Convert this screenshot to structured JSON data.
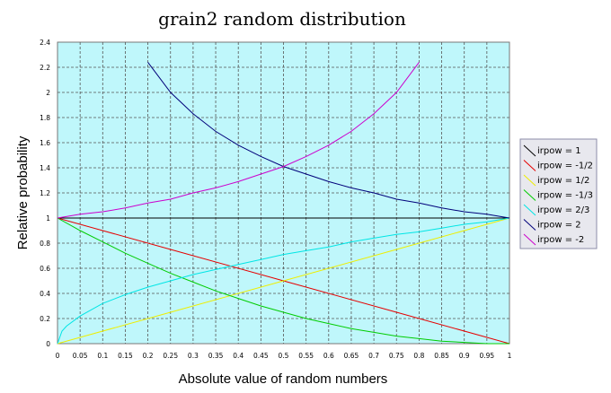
{
  "chart_data": {
    "type": "line",
    "title": "grain2 random distribution",
    "xlabel": "Absolute value of random numbers",
    "ylabel": "Relative probability",
    "xlim": [
      0,
      1
    ],
    "ylim": [
      0,
      2.4
    ],
    "grid": true,
    "legend_position": "right",
    "plot_background": "#bff7fb",
    "x_ticks": [
      "0",
      "0.05",
      "0.1",
      "0.15",
      "0.2",
      "0.25",
      "0.3",
      "0.35",
      "0.4",
      "0.45",
      "0.5",
      "0.55",
      "0.6",
      "0.65",
      "0.7",
      "0.75",
      "0.8",
      "0.85",
      "0.9",
      "0.95",
      "1"
    ],
    "y_ticks": [
      "0",
      "0.2",
      "0.4",
      "0.6",
      "0.8",
      "1",
      "1.2",
      "1.4",
      "1.6",
      "1.8",
      "2",
      "2.2",
      "2.4"
    ],
    "series": [
      {
        "name": "irpow = 1",
        "color": "#000000",
        "x": [
          0,
          1
        ],
        "y": [
          1,
          1
        ]
      },
      {
        "name": "irpow = -1/2",
        "color": "#e60000",
        "x": [
          0,
          0.25,
          0.5,
          0.75,
          1
        ],
        "y": [
          1,
          0.75,
          0.5,
          0.25,
          0
        ]
      },
      {
        "name": "irpow = 1/2",
        "color": "#eeee00",
        "x": [
          0,
          0.25,
          0.5,
          0.75,
          1
        ],
        "y": [
          0,
          0.25,
          0.5,
          0.75,
          1
        ]
      },
      {
        "name": "irpow = -1/3",
        "color": "#00cc00",
        "x": [
          0,
          0.05,
          0.1,
          0.15,
          0.2,
          0.25,
          0.3,
          0.35,
          0.4,
          0.45,
          0.5,
          0.55,
          0.6,
          0.65,
          0.7,
          0.75,
          0.8,
          0.85,
          0.9,
          0.95,
          1
        ],
        "y": [
          1,
          0.9,
          0.81,
          0.72,
          0.64,
          0.56,
          0.49,
          0.42,
          0.36,
          0.3,
          0.25,
          0.2,
          0.16,
          0.12,
          0.09,
          0.06,
          0.04,
          0.02,
          0.01,
          0.0,
          0
        ]
      },
      {
        "name": "irpow = 2/3",
        "color": "#00e5e5",
        "x": [
          0,
          0.01,
          0.02,
          0.05,
          0.1,
          0.15,
          0.2,
          0.25,
          0.3,
          0.35,
          0.4,
          0.45,
          0.5,
          0.55,
          0.6,
          0.65,
          0.7,
          0.75,
          0.8,
          0.85,
          0.9,
          0.95,
          1
        ],
        "y": [
          0,
          0.1,
          0.14,
          0.22,
          0.32,
          0.39,
          0.45,
          0.5,
          0.55,
          0.59,
          0.63,
          0.67,
          0.71,
          0.74,
          0.77,
          0.81,
          0.84,
          0.87,
          0.89,
          0.92,
          0.95,
          0.97,
          1
        ]
      },
      {
        "name": "irpow = 2",
        "color": "#00007a",
        "x": [
          0.2,
          0.25,
          0.3,
          0.35,
          0.4,
          0.45,
          0.5,
          0.55,
          0.6,
          0.65,
          0.7,
          0.75,
          0.8,
          0.85,
          0.9,
          0.95,
          1
        ],
        "y": [
          2.24,
          2.0,
          1.83,
          1.69,
          1.58,
          1.49,
          1.41,
          1.35,
          1.29,
          1.24,
          1.2,
          1.15,
          1.12,
          1.08,
          1.05,
          1.03,
          1
        ]
      },
      {
        "name": "irpow = -2",
        "color": "#cc00cc",
        "x": [
          0,
          0.05,
          0.1,
          0.15,
          0.2,
          0.25,
          0.3,
          0.35,
          0.4,
          0.45,
          0.5,
          0.55,
          0.6,
          0.65,
          0.7,
          0.75,
          0.8
        ],
        "y": [
          1,
          1.03,
          1.05,
          1.08,
          1.12,
          1.15,
          1.2,
          1.24,
          1.29,
          1.35,
          1.41,
          1.49,
          1.58,
          1.69,
          1.83,
          2.0,
          2.24
        ]
      }
    ]
  }
}
